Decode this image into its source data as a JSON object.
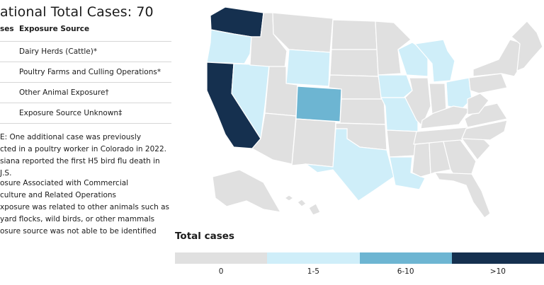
{
  "title": "ational Total Cases: 70",
  "table": {
    "headers": [
      "ses",
      "Exposure Source"
    ],
    "rows": [
      {
        "cases": "",
        "source": "Dairy Herds (Cattle)*"
      },
      {
        "cases": "",
        "source": "Poultry Farms and Culling Operations*"
      },
      {
        "cases": "",
        "source": "Other Animal Exposure†"
      },
      {
        "cases": "",
        "source": "Exposure Source Unknown‡"
      }
    ]
  },
  "notes": {
    "note1": [
      "E: One additional case was previously",
      "cted in a poultry worker in Colorado in 2022.",
      "siana reported the first H5 bird flu death in",
      "J.S."
    ],
    "footnotes": [
      "osure Associated with Commercial",
      "culture and Related Operations",
      "xposure was related to other animals such as",
      "yard flocks, wild birds, or other mammals",
      "osure source was not able to be identified"
    ]
  },
  "legend": {
    "title": "Total cases",
    "items": [
      {
        "label": "0",
        "color": "#e0e0e0"
      },
      {
        "label": "1-5",
        "color": "#cfeef9"
      },
      {
        "label": "6-10",
        "color": "#6db5d2"
      },
      {
        "label": ">10",
        "color": "#15304f"
      }
    ]
  },
  "map": {
    "states": [
      {
        "id": "WA",
        "level": 3
      },
      {
        "id": "OR",
        "level": 1
      },
      {
        "id": "CA",
        "level": 3
      },
      {
        "id": "NV",
        "level": 1
      },
      {
        "id": "ID",
        "level": 0
      },
      {
        "id": "MT",
        "level": 0
      },
      {
        "id": "WY",
        "level": 1
      },
      {
        "id": "UT",
        "level": 0
      },
      {
        "id": "AZ",
        "level": 0
      },
      {
        "id": "CO",
        "level": 2
      },
      {
        "id": "NM",
        "level": 0
      },
      {
        "id": "ND",
        "level": 0
      },
      {
        "id": "SD",
        "level": 0
      },
      {
        "id": "NE",
        "level": 0
      },
      {
        "id": "KS",
        "level": 0
      },
      {
        "id": "OK",
        "level": 0
      },
      {
        "id": "TX",
        "level": 1
      },
      {
        "id": "MN",
        "level": 0
      },
      {
        "id": "IA",
        "level": 1
      },
      {
        "id": "MO",
        "level": 1
      },
      {
        "id": "AR",
        "level": 0
      },
      {
        "id": "LA",
        "level": 1
      },
      {
        "id": "WI",
        "level": 1
      },
      {
        "id": "IL",
        "level": 0
      },
      {
        "id": "MI",
        "level": 1
      },
      {
        "id": "IN",
        "level": 0
      },
      {
        "id": "OH",
        "level": 1
      },
      {
        "id": "KY",
        "level": 0
      },
      {
        "id": "TN",
        "level": 0
      },
      {
        "id": "MS",
        "level": 0
      },
      {
        "id": "AL",
        "level": 0
      },
      {
        "id": "GA",
        "level": 0
      },
      {
        "id": "FL",
        "level": 0
      },
      {
        "id": "SC",
        "level": 0
      },
      {
        "id": "NC",
        "level": 0
      },
      {
        "id": "VA",
        "level": 0
      },
      {
        "id": "WV",
        "level": 0
      },
      {
        "id": "PA",
        "level": 0
      },
      {
        "id": "NY",
        "level": 0
      },
      {
        "id": "NE-states",
        "level": 0
      },
      {
        "id": "AK",
        "level": 0
      },
      {
        "id": "HI",
        "level": 0
      }
    ]
  }
}
